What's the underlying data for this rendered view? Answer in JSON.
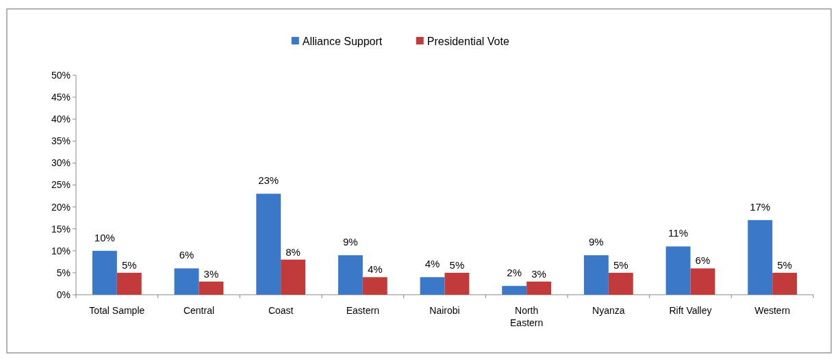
{
  "chart_data": {
    "type": "bar",
    "categories": [
      "Total Sample",
      "Central",
      "Coast",
      "Eastern",
      "Nairobi",
      "North\nEastern",
      "Nyanza",
      "Rift Valley",
      "Western"
    ],
    "series": [
      {
        "name": "Alliance Support",
        "color": "#3b78c8",
        "values": [
          10,
          6,
          23,
          9,
          4,
          2,
          9,
          11,
          17
        ],
        "value_labels": [
          "10%",
          "6%",
          "23%",
          "9%",
          "4%",
          "2%",
          "9%",
          "11%",
          "17%"
        ]
      },
      {
        "name": "Presidential Vote",
        "color": "#c23b3b",
        "values": [
          5,
          3,
          8,
          4,
          5,
          3,
          5,
          6,
          5
        ],
        "value_labels": [
          "5%",
          "3%",
          "8%",
          "4%",
          "5%",
          "3%",
          "5%",
          "6%",
          "5%"
        ]
      }
    ],
    "ylim": [
      0,
      50
    ],
    "yticks": [
      {
        "value": 0,
        "label": "0%"
      },
      {
        "value": 5,
        "label": "5%"
      },
      {
        "value": 10,
        "label": "10%"
      },
      {
        "value": 15,
        "label": "15%"
      },
      {
        "value": 20,
        "label": "20%"
      },
      {
        "value": 25,
        "label": "25%"
      },
      {
        "value": 30,
        "label": "30%"
      },
      {
        "value": 35,
        "label": "35%"
      },
      {
        "value": 40,
        "label": "40%"
      },
      {
        "value": 45,
        "label": "45%"
      },
      {
        "value": 50,
        "label": "50%"
      }
    ],
    "legend": "top",
    "grid": false
  }
}
